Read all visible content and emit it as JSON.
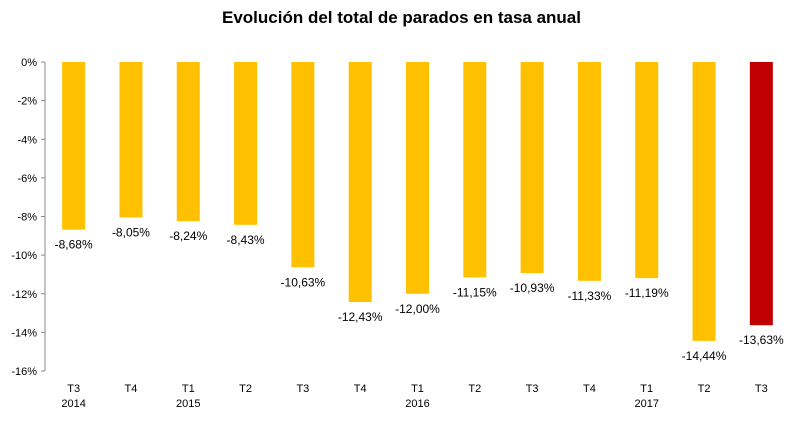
{
  "chart_data": {
    "type": "bar",
    "title": "Evolución del total de parados en tasa anual",
    "categories": [
      {
        "label": "T3",
        "year": "2014"
      },
      {
        "label": "T4",
        "year": ""
      },
      {
        "label": "T1",
        "year": "2015"
      },
      {
        "label": "T2",
        "year": ""
      },
      {
        "label": "T3",
        "year": ""
      },
      {
        "label": "T4",
        "year": ""
      },
      {
        "label": "T1",
        "year": "2016"
      },
      {
        "label": "T2",
        "year": ""
      },
      {
        "label": "T3",
        "year": ""
      },
      {
        "label": "T4",
        "year": ""
      },
      {
        "label": "T1",
        "year": "2017"
      },
      {
        "label": "T2",
        "year": ""
      },
      {
        "label": "T3",
        "year": ""
      }
    ],
    "values": [
      -8.68,
      -8.05,
      -8.24,
      -8.43,
      -10.63,
      -12.43,
      -12.0,
      -11.15,
      -10.93,
      -11.33,
      -11.19,
      -14.44,
      -13.63
    ],
    "data_labels": [
      "-8,68%",
      "-8,05%",
      "-8,24%",
      "-8,43%",
      "-10,63%",
      "-12,43%",
      "-12,00%",
      "-11,15%",
      "-10,93%",
      "-11,33%",
      "-11,19%",
      "-14,44%",
      "-13,63%"
    ],
    "y_ticks": [
      0,
      -2,
      -4,
      -6,
      -8,
      -10,
      -12,
      -14,
      -16
    ],
    "y_tick_labels": [
      "0%",
      "-2%",
      "-4%",
      "-6%",
      "-8%",
      "-10%",
      "-12%",
      "-14%",
      "-16%"
    ],
    "ylim": [
      -16,
      0
    ],
    "grid": false,
    "colors": {
      "default": "#FFC000",
      "highlight": "#C00000"
    },
    "highlight_index": 12
  }
}
